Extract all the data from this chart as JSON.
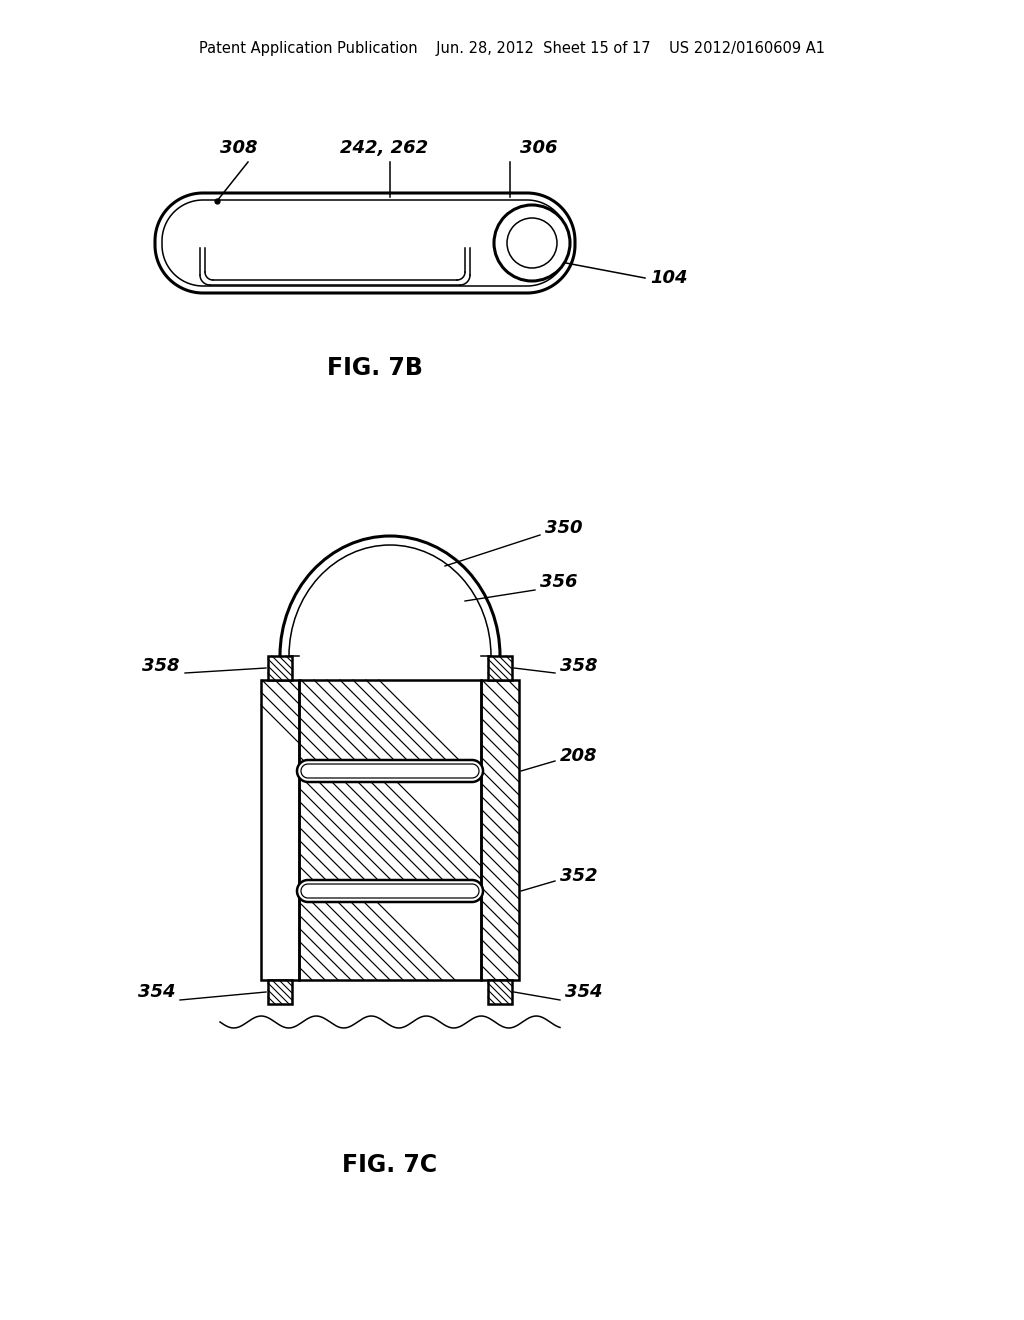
{
  "bg_color": "#ffffff",
  "header_text": "Patent Application Publication    Jun. 28, 2012  Sheet 15 of 17    US 2012/0160609 A1",
  "fig7b_label": "FIG. 7B",
  "fig7c_label": "FIG. 7C",
  "header_font_size": 10.5,
  "annotation_font_size": 13,
  "fig_label_font_size": 17
}
